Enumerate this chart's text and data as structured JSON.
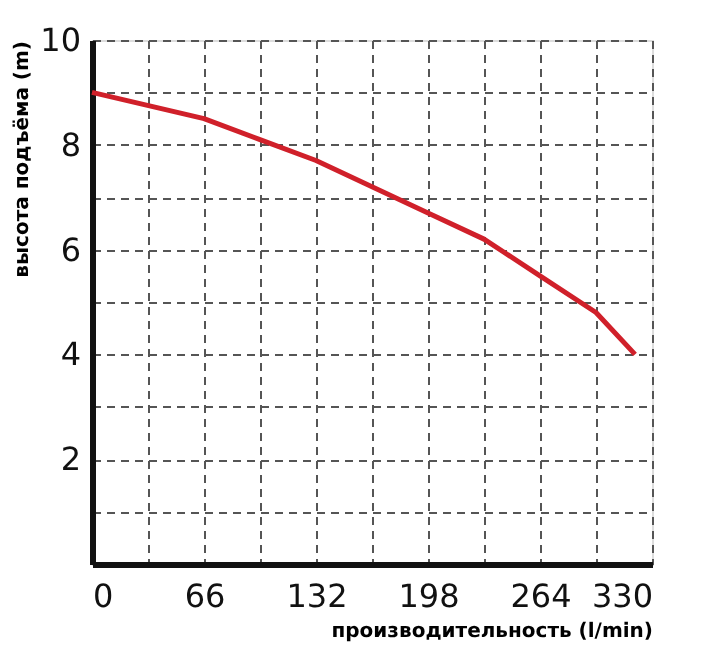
{
  "chart_data": {
    "type": "line",
    "xlabel": "производительность (l/min)",
    "ylabel": "высота подъёма (m)",
    "x": [
      0,
      66,
      99,
      132,
      165,
      198,
      231,
      264,
      297,
      320
    ],
    "series": [
      {
        "color": "#d0202a",
        "values": [
          9.0,
          8.5,
          8.1,
          7.7,
          7.2,
          6.7,
          6.2,
          5.5,
          4.8,
          4.0
        ]
      }
    ],
    "xlim": [
      0,
      330
    ],
    "ylim": [
      0,
      10
    ],
    "xticks": [
      0,
      {
        "value": 33,
        "label": null
      },
      66,
      {
        "value": 99,
        "label": null
      },
      132,
      {
        "value": 165,
        "label": null
      },
      198,
      {
        "value": 231,
        "label": null
      },
      264,
      {
        "value": 297,
        "label": null
      },
      330
    ],
    "yticks": [
      {
        "value": 0,
        "label": null
      },
      {
        "value": 1,
        "label": null
      },
      2,
      {
        "value": 3,
        "label": null
      },
      4,
      {
        "value": 5,
        "label": null
      },
      6,
      {
        "value": 7,
        "label": null
      },
      8,
      {
        "value": 9,
        "label": null
      },
      10
    ],
    "grid": true,
    "marker": "none",
    "line_style": "solid"
  }
}
